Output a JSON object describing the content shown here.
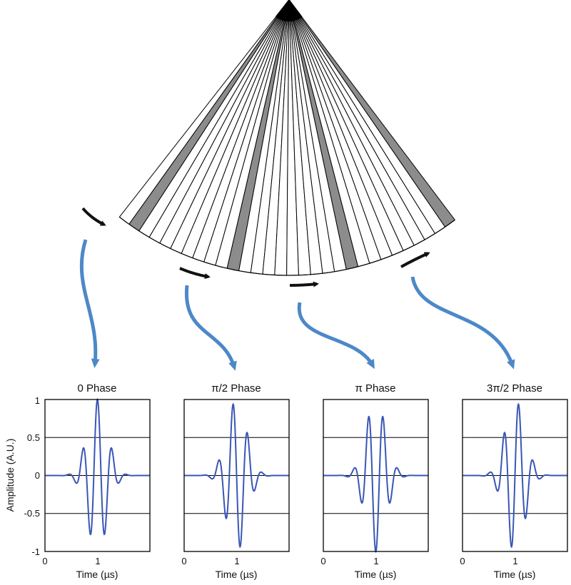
{
  "colors": {
    "wave": "#3a56b6",
    "arrow_blue": "#4d88c8",
    "highlight": "#8c8c8c",
    "line": "#000000"
  },
  "fan": {
    "elements": 30,
    "highlighted_elements": [
      1,
      10,
      20,
      29
    ]
  },
  "chart_data": [
    {
      "type": "line",
      "title": "0 Phase",
      "phase": 0,
      "xlabel": "Time (µs)",
      "ylabel": "Amplitude (A.U.)",
      "xlim": [
        0,
        2
      ],
      "ylim": [
        -1,
        1
      ],
      "xticks": [
        "0",
        "1"
      ],
      "yticks": [
        "-1",
        "-0.5",
        "0",
        "0.5",
        "1"
      ],
      "center": 1.0,
      "grid": "horizontal"
    },
    {
      "type": "line",
      "title": "π/2 Phase",
      "phase": 1.5708,
      "xlabel": "Time (µs)",
      "xlim": [
        0,
        2
      ],
      "ylim": [
        -1,
        1
      ],
      "xticks": [
        "0",
        "1"
      ],
      "center": 1.0,
      "grid": "horizontal"
    },
    {
      "type": "line",
      "title": "π Phase",
      "phase": 3.1416,
      "xlabel": "Time (µs)",
      "xlim": [
        0,
        2
      ],
      "ylim": [
        -1,
        1
      ],
      "xticks": [
        "0",
        "1"
      ],
      "center": 1.0,
      "grid": "horizontal"
    },
    {
      "type": "line",
      "title": "3π/2 Phase",
      "phase": 4.7124,
      "xlabel": "Time (µs)",
      "xlim": [
        0,
        2
      ],
      "ylim": [
        -1,
        1
      ],
      "xticks": [
        "0",
        "1"
      ],
      "center": 1.0,
      "grid": "horizontal"
    }
  ]
}
